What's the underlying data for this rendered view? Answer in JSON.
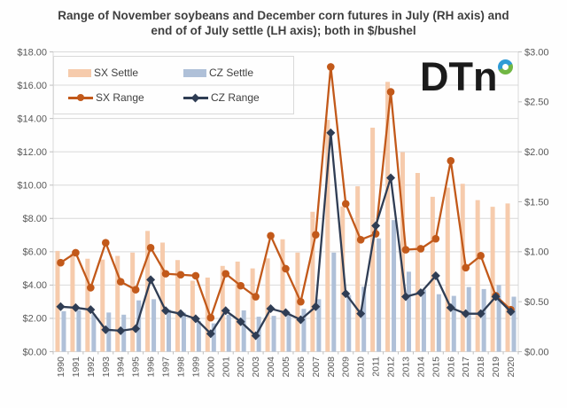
{
  "title": {
    "line1": "Range of November soybeans and December corn futures in July (RH axis) and",
    "line2": "end of of July settle (LH axis); both in $/bushel"
  },
  "logo": {
    "text": "DTn",
    "name": "DTN"
  },
  "legend": {
    "entries": [
      {
        "label": "SX Settle",
        "type": "bar",
        "color": "#f6cbac"
      },
      {
        "label": "CZ Settle",
        "type": "bar",
        "color": "#afc0d8"
      },
      {
        "label": "SX Range",
        "type": "line-circle",
        "color": "#c2591a"
      },
      {
        "label": "CZ Range",
        "type": "line-diamond",
        "color": "#2f3d54"
      }
    ]
  },
  "colors": {
    "sx_settle_bar": "#f6cbac",
    "cz_settle_bar": "#afc0d8",
    "sx_range_line": "#c2591a",
    "cz_range_line": "#2f3d54",
    "gridline": "#d9d9d9",
    "axis_line": "#bfbfbf",
    "axis_text": "#595959",
    "title_text": "#3f3f3f",
    "logo_text": "#1b1b1b",
    "logo_ring_blue": "#2e9bd6",
    "logo_ring_green": "#71b744"
  },
  "chart_data": {
    "type": "combo-bar-line",
    "categories": [
      1990,
      1991,
      1992,
      1993,
      1994,
      1995,
      1996,
      1997,
      1998,
      1999,
      2000,
      2001,
      2002,
      2003,
      2004,
      2005,
      2006,
      2007,
      2008,
      2009,
      2010,
      2011,
      2012,
      2013,
      2014,
      2015,
      2016,
      2017,
      2018,
      2019,
      2020
    ],
    "left_axis": {
      "min": 0,
      "max": 18,
      "step": 2,
      "labels": [
        "$18.00",
        "$16.00",
        "$14.00",
        "$12.00",
        "$10.00",
        "$8.00",
        "$6.00",
        "$4.00",
        "$2.00",
        "$0.00"
      ]
    },
    "right_axis": {
      "min": 0,
      "max": 3,
      "step": 0.5,
      "labels": [
        "$3.00",
        "$2.50",
        "$2.00",
        "$1.50",
        "$1.00",
        "$0.50",
        "$0.00"
      ]
    },
    "grid": true,
    "legend_position": "top-left",
    "series": [
      {
        "name": "SX Settle",
        "type": "bar",
        "axis": "left",
        "color": "#f6cbac",
        "values": [
          6.05,
          5.9,
          5.58,
          5.53,
          5.75,
          5.95,
          7.25,
          6.55,
          5.5,
          4.26,
          4.45,
          5.15,
          5.41,
          5.0,
          5.6,
          6.75,
          5.95,
          8.4,
          13.92,
          8.72,
          9.93,
          13.45,
          16.2,
          11.98,
          10.73,
          9.3,
          9.85,
          10.08,
          9.1,
          8.7,
          8.9
        ]
      },
      {
        "name": "CZ Settle",
        "type": "bar",
        "axis": "left",
        "color": "#afc0d8",
        "values": [
          2.43,
          2.5,
          2.25,
          2.35,
          2.22,
          3.08,
          3.15,
          2.52,
          2.34,
          1.85,
          1.7,
          2.22,
          2.48,
          2.1,
          2.15,
          2.31,
          2.57,
          3.15,
          5.95,
          3.4,
          3.9,
          6.8,
          7.9,
          4.8,
          3.72,
          3.45,
          3.35,
          3.88,
          3.76,
          4.0,
          3.3
        ]
      },
      {
        "name": "SX Range",
        "type": "line",
        "axis": "right",
        "color": "#c2591a",
        "marker": "circle",
        "values": [
          0.89,
          0.99,
          0.64,
          1.09,
          0.7,
          0.62,
          1.04,
          0.78,
          0.77,
          0.76,
          0.34,
          0.78,
          0.66,
          0.55,
          1.16,
          0.83,
          0.5,
          1.17,
          2.85,
          1.48,
          1.12,
          1.18,
          2.6,
          1.02,
          1.03,
          1.13,
          1.91,
          0.84,
          0.96,
          0.56,
          0.42
        ]
      },
      {
        "name": "CZ Range",
        "type": "line",
        "axis": "right",
        "color": "#2f3d54",
        "marker": "diamond",
        "values": [
          0.45,
          0.44,
          0.42,
          0.22,
          0.21,
          0.23,
          0.72,
          0.41,
          0.38,
          0.33,
          0.18,
          0.41,
          0.3,
          0.16,
          0.43,
          0.39,
          0.32,
          0.45,
          2.19,
          0.58,
          0.38,
          1.26,
          1.74,
          0.55,
          0.59,
          0.76,
          0.44,
          0.38,
          0.38,
          0.55,
          0.4
        ]
      }
    ]
  }
}
